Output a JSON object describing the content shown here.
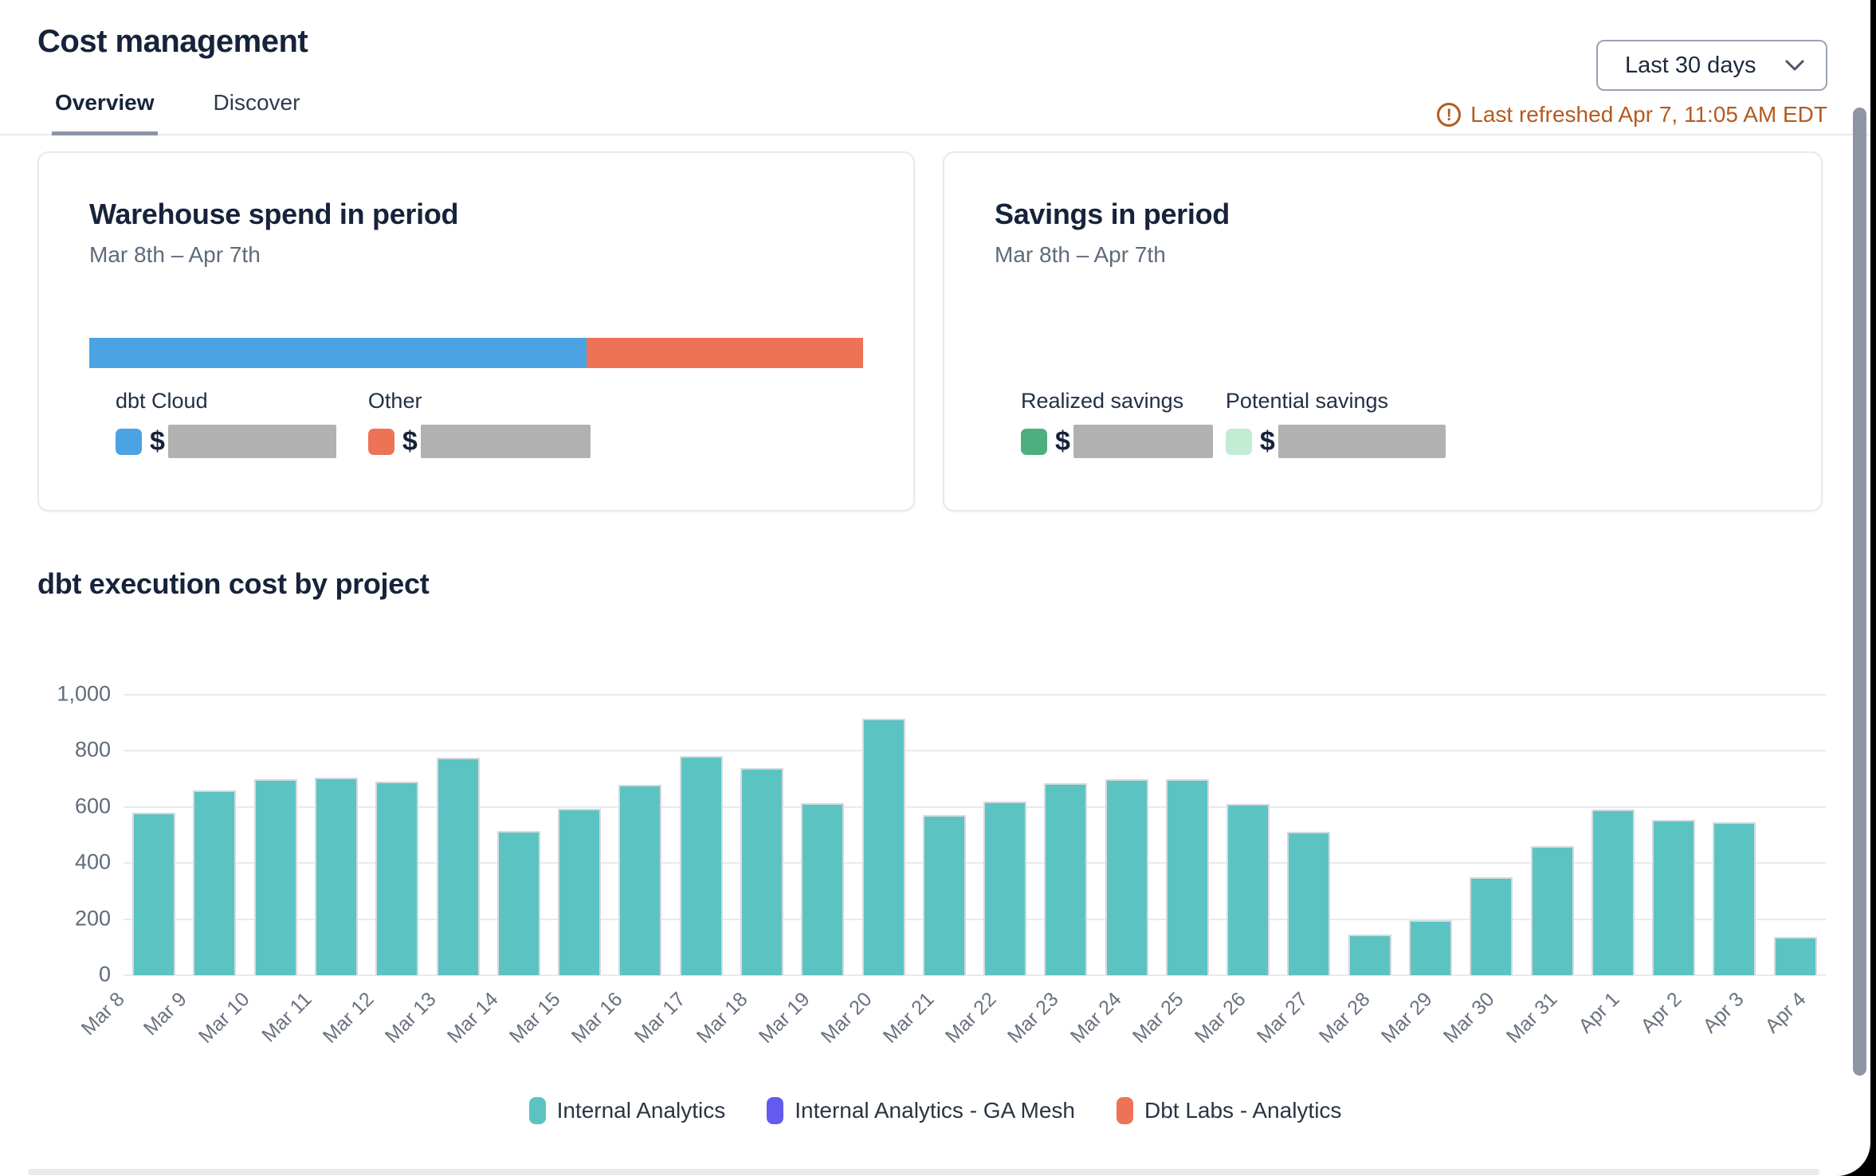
{
  "header": {
    "title": "Cost management",
    "date_range_selected": "Last 30 days",
    "last_refreshed": "Last refreshed Apr 7, 11:05 AM EDT"
  },
  "tabs": [
    {
      "label": "Overview",
      "active": true
    },
    {
      "label": "Discover",
      "active": false
    }
  ],
  "warehouse_card": {
    "title": "Warehouse spend in period",
    "subtitle": "Mar 8th – Apr 7th",
    "currency_symbol": "$",
    "values_redacted": true,
    "segments": [
      {
        "label": "dbt Cloud",
        "color": "#4ba3e3",
        "percent": 64.3
      },
      {
        "label": "Other",
        "color": "#ed7356",
        "percent": 35.7
      }
    ]
  },
  "savings_card": {
    "title": "Savings in period",
    "subtitle": "Mar 8th – Apr 7th",
    "currency_symbol": "$",
    "values_redacted": true,
    "items": [
      {
        "label": "Realized savings",
        "color": "#4caf7d"
      },
      {
        "label": "Potential savings",
        "color": "#c2ecd3"
      }
    ]
  },
  "chart_data": {
    "type": "bar",
    "title": "dbt execution cost by project",
    "categories": [
      "Mar 8",
      "Mar 9",
      "Mar 10",
      "Mar 11",
      "Mar 12",
      "Mar 13",
      "Mar 14",
      "Mar 15",
      "Mar 16",
      "Mar 17",
      "Mar 18",
      "Mar 19",
      "Mar 20",
      "Mar 21",
      "Mar 22",
      "Mar 23",
      "Mar 24",
      "Mar 25",
      "Mar 26",
      "Mar 27",
      "Mar 28",
      "Mar 29",
      "Mar 30",
      "Mar 31",
      "Apr 1",
      "Apr 2",
      "Apr 3",
      "Apr 4"
    ],
    "series": [
      {
        "name": "Internal Analytics",
        "color": "#5cc3c3",
        "values": [
          580,
          660,
          700,
          705,
          690,
          775,
          515,
          595,
          680,
          780,
          740,
          615,
          915,
          570,
          620,
          685,
          700,
          700,
          610,
          510,
          145,
          195,
          350,
          460,
          590,
          555,
          545,
          135
        ]
      }
    ],
    "legend": [
      {
        "label": "Internal Analytics",
        "color": "#5cc3c3"
      },
      {
        "label": "Internal Analytics - GA Mesh",
        "color": "#635bed"
      },
      {
        "label": "Dbt Labs - Analytics",
        "color": "#ed7356"
      }
    ],
    "xlabel": "",
    "ylabel": "",
    "ylim": [
      0,
      1000
    ],
    "yticks": [
      "1,000",
      "800",
      "600",
      "400",
      "200",
      "0"
    ],
    "grid": true,
    "legend_position": "bottom"
  },
  "colors": {
    "accent_teal": "#5cc3c3",
    "accent_blue": "#4ba3e3",
    "accent_orange": "#ed7356",
    "accent_green": "#4caf7d",
    "accent_light_green": "#c2ecd3",
    "accent_purple": "#635bed",
    "warning_text": "#b35b20"
  }
}
